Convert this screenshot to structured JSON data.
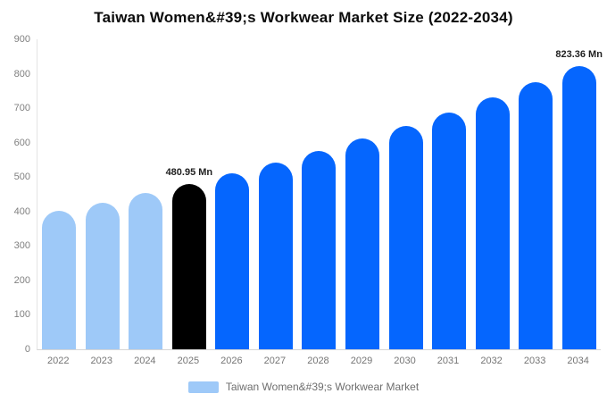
{
  "title": "Taiwan Women&#39;s Workwear Market Size (2022-2034)",
  "chart_data": {
    "type": "bar",
    "title": "Taiwan Women&#39;s Workwear Market Size (2022-2034)",
    "categories": [
      "2022",
      "2023",
      "2024",
      "2025",
      "2026",
      "2027",
      "2028",
      "2029",
      "2030",
      "2031",
      "2032",
      "2033",
      "2034"
    ],
    "series": [
      {
        "name": "Taiwan Women&#39;s Workwear Market",
        "values": [
          401.9,
          426.7,
          453.0,
          480.95,
          510.6,
          542.1,
          575.5,
          611.0,
          648.7,
          688.7,
          731.1,
          776.2,
          823.36
        ]
      }
    ],
    "point_labels": [
      "",
      "",
      "",
      "480.95 Mn",
      "",
      "",
      "",
      "",
      "",
      "",
      "",
      "",
      "823.36 Mn"
    ],
    "point_colors": [
      "#9ec9f8",
      "#9ec9f8",
      "#9ec9f8",
      "#000000",
      "#0566fe",
      "#0566fe",
      "#0566fe",
      "#0566fe",
      "#0566fe",
      "#0566fe",
      "#0566fe",
      "#0566fe",
      "#0566fe"
    ],
    "xlabel": "",
    "ylabel": "",
    "ylim": [
      0,
      900
    ],
    "yticks": [
      0,
      100,
      200,
      300,
      400,
      500,
      600,
      700,
      800,
      900
    ],
    "grid": false,
    "legend_position": "bottom",
    "value_unit": "Mn"
  },
  "colors": {
    "historical_bar": "#9ec9f8",
    "highlight_bar": "#000000",
    "forecast_bar": "#0566fe",
    "axis_label": "#808080",
    "title_text": "#0b0b0b"
  },
  "legend": {
    "items": [
      {
        "label": "Taiwan Women&#39;s Workwear Market",
        "swatch_color": "#9ec9f8"
      }
    ]
  }
}
